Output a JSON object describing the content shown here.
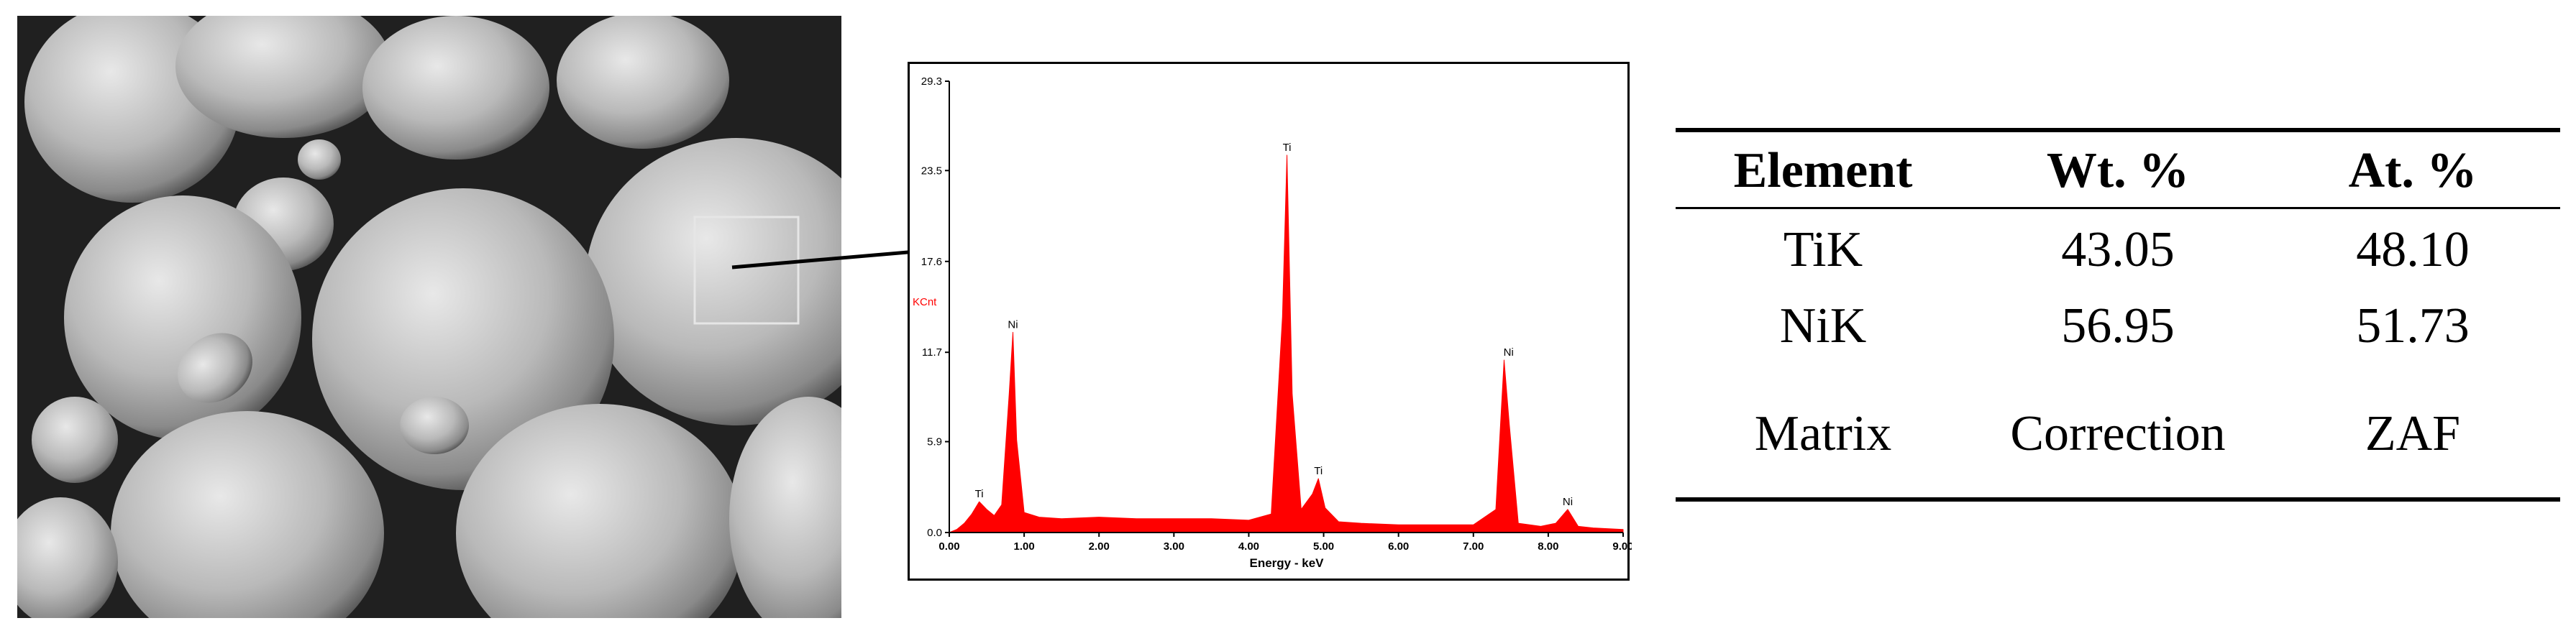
{
  "spectrum": {
    "y_axis_unit": "KCnt",
    "x_axis_label": "Energy - keV",
    "colors": {
      "spectrum": "#ff0000",
      "axis": "#000000",
      "unit_label": "#ff0000"
    }
  },
  "chart_data": {
    "type": "area",
    "xlabel": "Energy - keV",
    "ylabel": "KCnt",
    "xlim": [
      0.0,
      9.0
    ],
    "ylim": [
      0.0,
      29.3
    ],
    "x_ticks": [
      "0.00",
      "1.00",
      "2.00",
      "3.00",
      "4.00",
      "5.00",
      "6.00",
      "7.00",
      "8.00",
      "9.00"
    ],
    "y_ticks": [
      "0.0",
      "5.9",
      "11.7",
      "17.6",
      "23.5",
      "29.3"
    ],
    "series": [
      {
        "x": [
          0.0,
          0.1,
          0.2,
          0.3,
          0.4,
          0.5,
          0.6,
          0.7,
          0.8,
          0.85,
          0.9,
          1.0,
          1.2,
          1.5,
          2.0,
          2.5,
          3.0,
          3.5,
          4.0,
          4.3,
          4.45,
          4.51,
          4.58,
          4.7,
          4.85,
          4.93,
          5.02,
          5.2,
          5.5,
          6.0,
          6.5,
          7.0,
          7.3,
          7.41,
          7.48,
          7.6,
          7.9,
          8.1,
          8.26,
          8.4,
          8.6,
          9.0
        ],
        "values": [
          0.0,
          0.2,
          0.6,
          1.2,
          2.0,
          1.5,
          1.1,
          1.8,
          9.0,
          13.0,
          6.0,
          1.3,
          1.0,
          0.9,
          1.0,
          0.9,
          0.9,
          0.9,
          0.8,
          1.2,
          14.0,
          24.5,
          9.0,
          1.5,
          2.5,
          3.5,
          1.6,
          0.7,
          0.6,
          0.5,
          0.5,
          0.5,
          1.5,
          11.2,
          7.0,
          0.6,
          0.4,
          0.6,
          1.5,
          0.4,
          0.3,
          0.2
        ]
      }
    ],
    "peak_labels": [
      {
        "label": "Ti",
        "x": 0.4,
        "y": 2.0
      },
      {
        "label": "Ni",
        "x": 0.85,
        "y": 13.0
      },
      {
        "label": "Ti",
        "x": 4.51,
        "y": 24.5
      },
      {
        "label": "Ti",
        "x": 4.93,
        "y": 3.5
      },
      {
        "label": "Ni",
        "x": 7.47,
        "y": 11.2
      },
      {
        "label": "Ni",
        "x": 8.26,
        "y": 1.5
      }
    ]
  },
  "composition_table": {
    "headers": [
      "Element",
      "Wt. %",
      "At. %"
    ],
    "rows": [
      [
        "TiK",
        "43.05",
        "48.10"
      ],
      [
        "NiK",
        "56.95",
        "51.73"
      ]
    ],
    "footer": [
      "Matrix",
      "Correction",
      "ZAF"
    ]
  }
}
